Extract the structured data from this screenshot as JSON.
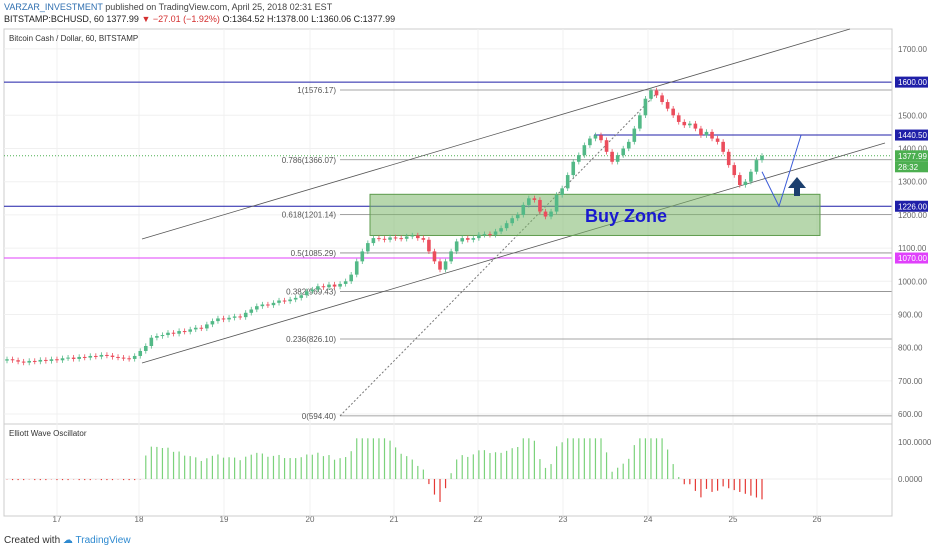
{
  "header": {
    "author": "VARZAR_INVESTMENT",
    "published": "published on TradingView.com, April 25, 2018 02:31 EST",
    "symbol": "BITSTAMP:BCHUSD, 60",
    "last": "1377.99",
    "change": "−27.01 (−1.92%)",
    "o": "O:1364.52",
    "h": "H:1378.00",
    "l": "L:1360.06",
    "c": "C:1377.99"
  },
  "chart_data": {
    "type": "candlestick",
    "title": "Bitcoin Cash / Dollar, 60, BITSTAMP",
    "x_ticks": [
      "17",
      "18",
      "19",
      "20",
      "21",
      "22",
      "23",
      "24",
      "25",
      "26"
    ],
    "y_ticks": [
      600,
      700,
      800,
      900,
      1000,
      1100,
      1200,
      1300,
      1400,
      1500,
      1700
    ],
    "ylim": [
      570,
      1760
    ],
    "price_badges": [
      {
        "value": "1600.00",
        "color": "#1f1fa8"
      },
      {
        "value": "1440.50",
        "color": "#1f1fa8"
      },
      {
        "value": "1377.99",
        "color": "#4caf50"
      },
      {
        "value": "28:32",
        "color": "#4caf50"
      },
      {
        "value": "1226.00",
        "color": "#1f1fa8"
      },
      {
        "value": "1070.00",
        "color": "#e040fb"
      }
    ],
    "fib_levels": [
      {
        "label": "1(1576.17)",
        "value": 1576.17
      },
      {
        "label": "0.786(1366.07)",
        "value": 1366.07
      },
      {
        "label": "0.618(1201.14)",
        "value": 1201.14
      },
      {
        "label": "0.5(1085.29)",
        "value": 1085.29
      },
      {
        "label": "0.382(969.43)",
        "value": 969.43
      },
      {
        "label": "0.236(826.10)",
        "value": 826.1
      },
      {
        "label": "0(594.40)",
        "value": 594.4
      }
    ],
    "horizontal_lines": [
      {
        "value": 1600,
        "color": "#1f1fa8"
      },
      {
        "value": 1226,
        "color": "#1f1fa8"
      },
      {
        "value": 1070,
        "color": "#e040fb"
      }
    ],
    "buy_zone": {
      "label": "Buy Zone",
      "from": 1138,
      "to": 1262
    },
    "candles_close": [
      765,
      762,
      758,
      755,
      760,
      758,
      763,
      760,
      765,
      762,
      768,
      770,
      766,
      772,
      770,
      775,
      773,
      778,
      776,
      772,
      770,
      768,
      766,
      775,
      790,
      805,
      830,
      835,
      838,
      845,
      842,
      850,
      848,
      855,
      860,
      858,
      870,
      880,
      888,
      885,
      890,
      894,
      892,
      905,
      915,
      925,
      930,
      928,
      935,
      942,
      940,
      945,
      950,
      958,
      970,
      975,
      985,
      982,
      990,
      984,
      992,
      1000,
      1020,
      1060,
      1090,
      1115,
      1130,
      1128,
      1125,
      1132,
      1130,
      1128,
      1135,
      1138,
      1130,
      1125,
      1090,
      1060,
      1035,
      1060,
      1090,
      1120,
      1130,
      1125,
      1130,
      1140,
      1142,
      1140,
      1150,
      1160,
      1175,
      1190,
      1200,
      1230,
      1250,
      1245,
      1210,
      1195,
      1210,
      1260,
      1280,
      1320,
      1360,
      1380,
      1410,
      1430,
      1440,
      1425,
      1390,
      1360,
      1380,
      1400,
      1420,
      1460,
      1500,
      1550,
      1575,
      1560,
      1540,
      1520,
      1500,
      1480,
      1470,
      1475,
      1460,
      1440,
      1450,
      1430,
      1420,
      1390,
      1350,
      1320,
      1290,
      1300,
      1330,
      1365,
      1378
    ],
    "oscillator": {
      "name": "Elliott Wave Oscillator",
      "y_ticks": [
        "100.0000",
        "0.0000"
      ]
    }
  },
  "footer": {
    "created": "Created with",
    "brand": "TradingView"
  }
}
